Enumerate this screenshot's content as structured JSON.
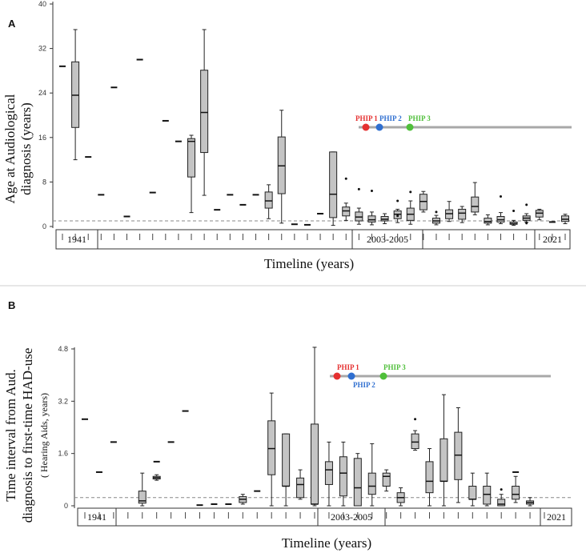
{
  "panels": [
    {
      "id": "A",
      "ylabel_lines": [
        "Age at Audiological",
        "diagnosis (years)"
      ],
      "xlabel": "Timeline (years)",
      "era_labels": [
        "1941",
        "2003-2005",
        "2021"
      ],
      "phip_labels": [
        "PHIP 1",
        "PHIP 2",
        "PHIP 3"
      ]
    },
    {
      "id": "B",
      "ylabel_lines": [
        "Time interval from Aud.",
        "diagnosis to first-time HAD-use"
      ],
      "ylabel_sub": "( Hearing Aids, years)",
      "xlabel": "Timeline (years)",
      "era_labels": [
        "1941",
        "2003-2005",
        "2021"
      ],
      "phip_labels": [
        "PHIP 1",
        "PHIP 2",
        "PHIP 3"
      ]
    }
  ],
  "colors": {
    "phip1": "#e53030",
    "phip2": "#2f6fd0",
    "phip3": "#4fbf3a",
    "box": "#c4c4c4",
    "phip_line": "#a8a8a8"
  },
  "chart_data": [
    {
      "type": "box",
      "panel": "A",
      "ylabel": "Age at Audiological diagnosis (years)",
      "xlabel": "Timeline (years)",
      "ylim": [
        0,
        40
      ],
      "yticks": [
        0,
        8,
        16,
        24,
        32,
        40
      ],
      "reference_line": 1,
      "phip_markers": [
        {
          "name": "PHIP 1",
          "x_index": 24
        },
        {
          "name": "PHIP 2",
          "x_index": 25
        },
        {
          "name": "PHIP 3",
          "x_index": 27
        }
      ],
      "singles": [
        {
          "i": 0,
          "v": 28.8
        },
        {
          "i": 2,
          "v": 12.5
        },
        {
          "i": 3,
          "v": 5.7
        },
        {
          "i": 4,
          "v": 25.0
        },
        {
          "i": 5,
          "v": 1.8
        },
        {
          "i": 6,
          "v": 30.0
        },
        {
          "i": 7,
          "v": 6.1
        },
        {
          "i": 8,
          "v": 19.0
        },
        {
          "i": 9,
          "v": 15.3
        },
        {
          "i": 12,
          "v": 3.0
        },
        {
          "i": 13,
          "v": 5.7
        },
        {
          "i": 14,
          "v": 3.9
        },
        {
          "i": 15,
          "v": 5.7
        },
        {
          "i": 18,
          "v": 0.4
        },
        {
          "i": 19,
          "v": 0.3
        },
        {
          "i": 20,
          "v": 2.3
        },
        {
          "i": 38,
          "v": 0.8
        }
      ],
      "boxes": [
        {
          "i": 1,
          "min": 12,
          "q1": 17.8,
          "med": 23.6,
          "q3": 29.6,
          "max": 35.4,
          "out": []
        },
        {
          "i": 10,
          "min": 2.5,
          "q1": 8.9,
          "med": 15.3,
          "q3": 15.8,
          "max": 16.4,
          "out": []
        },
        {
          "i": 11,
          "min": 5.6,
          "q1": 13.3,
          "med": 20.5,
          "q3": 28.1,
          "max": 35.4,
          "out": []
        },
        {
          "i": 16,
          "min": 1.4,
          "q1": 3.3,
          "med": 4.6,
          "q3": 6.2,
          "max": 7.5,
          "out": []
        },
        {
          "i": 17,
          "min": 0.6,
          "q1": 5.9,
          "med": 10.9,
          "q3": 16.1,
          "max": 20.9,
          "out": []
        },
        {
          "i": 21,
          "min": 0.2,
          "q1": 1.6,
          "med": 5.8,
          "q3": 13.4,
          "max": 13.4,
          "out": []
        },
        {
          "i": 22,
          "min": 1.1,
          "q1": 1.9,
          "med": 2.8,
          "q3": 3.5,
          "max": 4.2,
          "out": [
            8.6
          ]
        },
        {
          "i": 23,
          "min": 0.4,
          "q1": 1.0,
          "med": 1.7,
          "q3": 2.6,
          "max": 3.3,
          "out": [
            6.7
          ]
        },
        {
          "i": 24,
          "min": 0.3,
          "q1": 0.8,
          "med": 1.2,
          "q3": 1.9,
          "max": 2.6,
          "out": [
            6.4
          ]
        },
        {
          "i": 25,
          "min": 0.5,
          "q1": 1.0,
          "med": 1.3,
          "q3": 1.8,
          "max": 2.3,
          "out": []
        },
        {
          "i": 26,
          "min": 0.7,
          "q1": 1.4,
          "med": 2.2,
          "q3": 2.8,
          "max": 3.1,
          "out": [
            1.9,
            4.6
          ]
        },
        {
          "i": 27,
          "min": 0.4,
          "q1": 1.1,
          "med": 2.2,
          "q3": 3.3,
          "max": 4.6,
          "out": [
            6.2
          ]
        },
        {
          "i": 28,
          "min": 2.6,
          "q1": 3.0,
          "med": 4.5,
          "q3": 5.8,
          "max": 6.3,
          "out": []
        },
        {
          "i": 29,
          "min": 0.3,
          "q1": 0.6,
          "med": 1.0,
          "q3": 1.5,
          "max": 2.0,
          "out": [
            2.6
          ]
        },
        {
          "i": 30,
          "min": 0.9,
          "q1": 1.4,
          "med": 2.3,
          "q3": 3.0,
          "max": 4.5,
          "out": []
        },
        {
          "i": 31,
          "min": 0.7,
          "q1": 1.3,
          "med": 2.4,
          "q3": 3.1,
          "max": 3.6,
          "out": []
        },
        {
          "i": 32,
          "min": 2.1,
          "q1": 2.6,
          "med": 3.6,
          "q3": 5.3,
          "max": 7.9,
          "out": []
        },
        {
          "i": 33,
          "min": 0.3,
          "q1": 0.6,
          "med": 0.9,
          "q3": 1.5,
          "max": 2.1,
          "out": []
        },
        {
          "i": 34,
          "min": 0.5,
          "q1": 0.8,
          "med": 1.2,
          "q3": 1.8,
          "max": 2.5,
          "out": [
            5.4
          ]
        },
        {
          "i": 35,
          "min": 0.2,
          "q1": 0.4,
          "med": 0.5,
          "q3": 0.8,
          "max": 1.1,
          "out": [
            2.8
          ]
        },
        {
          "i": 36,
          "min": 0.8,
          "q1": 1.1,
          "med": 1.5,
          "q3": 1.9,
          "max": 2.3,
          "out": [
            0.6,
            3.9
          ]
        },
        {
          "i": 37,
          "min": 1.2,
          "q1": 1.7,
          "med": 2.4,
          "q3": 2.9,
          "max": 3.1,
          "out": []
        },
        {
          "i": 39,
          "min": 0.5,
          "q1": 0.9,
          "med": 1.3,
          "q3": 1.9,
          "max": 2.2,
          "out": []
        }
      ]
    },
    {
      "type": "box",
      "panel": "B",
      "ylabel": "Time interval from Aud. diagnosis to first-time HAD-use ( Hearing Aids, years)",
      "xlabel": "Timeline (years)",
      "ylim": [
        0,
        4.8
      ],
      "yticks": [
        0,
        1.6,
        3.2,
        4.8
      ],
      "ytick_labels": [
        "0",
        "1.6",
        "3.2",
        "4.8"
      ],
      "reference_line": 0.25,
      "phip_markers": [
        {
          "name": "PHIP 1",
          "x_index": 14
        },
        {
          "name": "PHIP 2",
          "x_index": 15
        },
        {
          "name": "PHIP 3",
          "x_index": 17
        }
      ],
      "singles": [
        {
          "i": 0,
          "v": 2.65
        },
        {
          "i": 1,
          "v": 1.03
        },
        {
          "i": 2,
          "v": 1.95
        },
        {
          "i": 5,
          "v": 1.35
        },
        {
          "i": 6,
          "v": 1.95
        },
        {
          "i": 7,
          "v": 2.9
        },
        {
          "i": 8,
          "v": 0.02
        },
        {
          "i": 9,
          "v": 0.05
        },
        {
          "i": 10,
          "v": 0.05
        },
        {
          "i": 12,
          "v": 0.45
        },
        {
          "i": 30,
          "v": 1.03
        }
      ],
      "boxes": [
        {
          "i": 4,
          "min": 0.0,
          "q1": 0.08,
          "med": 0.15,
          "q3": 0.45,
          "max": 1.0,
          "out": []
        },
        {
          "i": 5,
          "min": 0.78,
          "q1": 0.82,
          "med": 0.86,
          "q3": 0.9,
          "max": 0.95,
          "out": []
        },
        {
          "i": 11,
          "min": 0.05,
          "q1": 0.1,
          "med": 0.2,
          "q3": 0.28,
          "max": 0.35,
          "out": []
        },
        {
          "i": 13,
          "min": 0.0,
          "q1": 0.95,
          "med": 1.75,
          "q3": 2.6,
          "max": 3.45,
          "out": []
        },
        {
          "i": 14,
          "min": 0.0,
          "q1": 0.6,
          "med": 0.6,
          "q3": 2.2,
          "max": 2.2,
          "out": []
        },
        {
          "i": 15,
          "min": 0.2,
          "q1": 0.25,
          "med": 0.65,
          "q3": 0.85,
          "max": 1.1,
          "out": []
        },
        {
          "i": 16,
          "min": 0.0,
          "q1": 0.05,
          "med": 0.05,
          "q3": 2.5,
          "max": 4.85,
          "out": []
        },
        {
          "i": 17,
          "min": 0.0,
          "q1": 0.65,
          "med": 1.1,
          "q3": 1.35,
          "max": 1.95,
          "out": []
        },
        {
          "i": 18,
          "min": 0.0,
          "q1": 0.3,
          "med": 1.0,
          "q3": 1.5,
          "max": 1.95,
          "out": []
        },
        {
          "i": 19,
          "min": 0.0,
          "q1": 0.0,
          "med": 0.55,
          "q3": 1.45,
          "max": 1.6,
          "out": []
        },
        {
          "i": 20,
          "min": 0.0,
          "q1": 0.35,
          "med": 0.6,
          "q3": 1.0,
          "max": 1.9,
          "out": []
        },
        {
          "i": 21,
          "min": 0.45,
          "q1": 0.6,
          "med": 0.9,
          "q3": 1.0,
          "max": 1.1,
          "out": []
        },
        {
          "i": 22,
          "min": 0.0,
          "q1": 0.1,
          "med": 0.25,
          "q3": 0.4,
          "max": 0.55,
          "out": []
        },
        {
          "i": 23,
          "min": 1.7,
          "q1": 1.75,
          "med": 1.95,
          "q3": 2.2,
          "max": 2.3,
          "out": [
            2.65
          ]
        },
        {
          "i": 24,
          "min": 0.0,
          "q1": 0.4,
          "med": 0.75,
          "q3": 1.35,
          "max": 1.75,
          "out": []
        },
        {
          "i": 25,
          "min": 0.0,
          "q1": 0.75,
          "med": 0.75,
          "q3": 2.05,
          "max": 3.4,
          "out": []
        },
        {
          "i": 26,
          "min": 0.1,
          "q1": 0.8,
          "med": 1.55,
          "q3": 2.25,
          "max": 3.0,
          "out": []
        },
        {
          "i": 27,
          "min": 0.0,
          "q1": 0.2,
          "med": 0.2,
          "q3": 0.6,
          "max": 1.0,
          "out": []
        },
        {
          "i": 28,
          "min": 0.0,
          "q1": 0.05,
          "med": 0.35,
          "q3": 0.6,
          "max": 1.0,
          "out": []
        },
        {
          "i": 29,
          "min": 0.0,
          "q1": 0.0,
          "med": 0.05,
          "q3": 0.2,
          "max": 0.35,
          "out": [
            0.5
          ]
        },
        {
          "i": 30,
          "min": 0.1,
          "q1": 0.2,
          "med": 0.35,
          "q3": 0.6,
          "max": 0.9,
          "out": []
        },
        {
          "i": 31,
          "min": 0.0,
          "q1": 0.05,
          "med": 0.1,
          "q3": 0.15,
          "max": 0.25,
          "out": []
        }
      ]
    }
  ]
}
